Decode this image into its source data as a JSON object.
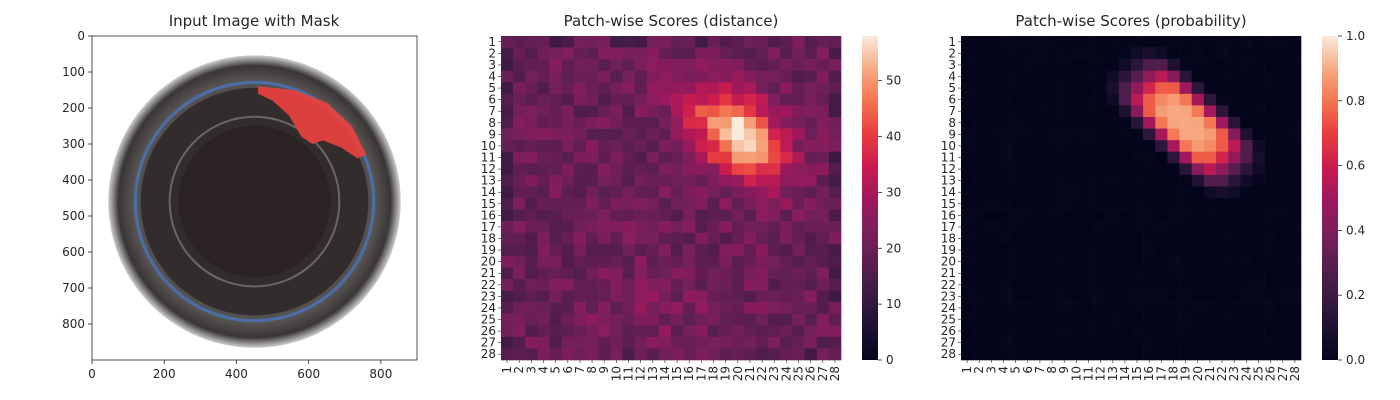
{
  "chart_data": [
    {
      "type": "image",
      "title": "Input Image with Mask",
      "xlim": [
        0,
        900
      ],
      "ylim": [
        900,
        0
      ],
      "xticks": [
        0,
        200,
        400,
        600,
        800
      ],
      "yticks": [
        0,
        100,
        200,
        300,
        400,
        500,
        600,
        700,
        800
      ],
      "bottle": {
        "cx": 450,
        "cy": 460,
        "r_outer": 405,
        "r_ring": 330,
        "r_inner": 210
      },
      "colors": {
        "background": "#ffffff",
        "rim": "#3d3c3c",
        "ring": "#4a6fa8",
        "center": "#2a2223",
        "mask": "#e8413f"
      }
    },
    {
      "type": "heatmap",
      "title": "Patch-wise Scores (distance)",
      "xlabels": [
        "1",
        "2",
        "3",
        "4",
        "5",
        "6",
        "7",
        "8",
        "9",
        "10",
        "11",
        "12",
        "13",
        "14",
        "15",
        "16",
        "17",
        "18",
        "19",
        "20",
        "21",
        "22",
        "23",
        "24",
        "25",
        "26",
        "27",
        "28"
      ],
      "ylabels": [
        "1",
        "2",
        "3",
        "4",
        "5",
        "6",
        "7",
        "8",
        "9",
        "10",
        "11",
        "12",
        "13",
        "14",
        "15",
        "16",
        "17",
        "18",
        "19",
        "20",
        "21",
        "22",
        "23",
        "24",
        "25",
        "26",
        "27",
        "28"
      ],
      "colorbar": {
        "min": 0,
        "max": 58,
        "ticks": [
          0,
          10,
          20,
          30,
          40,
          50
        ]
      },
      "base_value": 20,
      "hotspot": {
        "center_row": 9,
        "center_col": 20,
        "peak": 58,
        "description_value_range": [
          30,
          58
        ]
      },
      "anomaly_region_rows": [
        4,
        12
      ],
      "anomaly_region_cols": [
        14,
        26
      ]
    },
    {
      "type": "heatmap",
      "title": "Patch-wise Scores (probability)",
      "xlabels": [
        "1",
        "2",
        "3",
        "4",
        "5",
        "6",
        "7",
        "8",
        "9",
        "10",
        "11",
        "12",
        "13",
        "14",
        "15",
        "16",
        "17",
        "18",
        "19",
        "20",
        "21",
        "22",
        "23",
        "24",
        "25",
        "26",
        "27",
        "28"
      ],
      "ylabels": [
        "1",
        "2",
        "3",
        "4",
        "5",
        "6",
        "7",
        "8",
        "9",
        "10",
        "11",
        "12",
        "13",
        "14",
        "15",
        "16",
        "17",
        "18",
        "19",
        "20",
        "21",
        "22",
        "23",
        "24",
        "25",
        "26",
        "27",
        "28"
      ],
      "colorbar": {
        "min": 0,
        "max": 1,
        "ticks": [
          "0.0",
          "0.2",
          "0.4",
          "0.6",
          "0.8",
          "1.0"
        ]
      },
      "base_value": 0.0,
      "hotspot": {
        "center_row": 8,
        "center_col": 19,
        "peak": 0.9
      },
      "anomaly_region_rows": [
        4,
        12
      ],
      "anomaly_region_cols": [
        14,
        26
      ]
    }
  ]
}
